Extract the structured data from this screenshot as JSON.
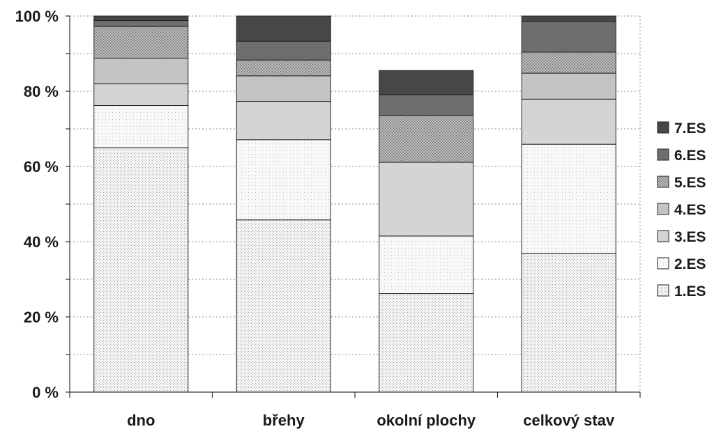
{
  "chart_data": {
    "type": "bar",
    "stacked": true,
    "title": "",
    "xlabel": "",
    "ylabel": "",
    "ylim": [
      0,
      100
    ],
    "y_ticks": [
      {
        "value": 0,
        "label": "0 %"
      },
      {
        "value": 20,
        "label": "20 %"
      },
      {
        "value": 40,
        "label": "40 %"
      },
      {
        "value": 60,
        "label": "60 %"
      },
      {
        "value": 80,
        "label": "80 %"
      },
      {
        "value": 100,
        "label": "100 %"
      }
    ],
    "grid": true,
    "legend_position": "right",
    "categories": [
      "dno",
      "břehy",
      "okolní plochy",
      "celkový stav"
    ],
    "series": [
      {
        "name": "1.ES",
        "values": [
          65.0,
          45.8,
          26.2,
          36.9
        ]
      },
      {
        "name": "2.ES",
        "values": [
          11.2,
          21.3,
          15.3,
          29.0
        ]
      },
      {
        "name": "3.ES",
        "values": [
          5.8,
          10.2,
          19.6,
          12.0
        ]
      },
      {
        "name": "4.ES",
        "values": [
          6.8,
          6.8,
          0.0,
          6.9
        ]
      },
      {
        "name": "5.ES",
        "values": [
          8.4,
          4.2,
          12.5,
          5.6
        ]
      },
      {
        "name": "6.ES",
        "values": [
          1.6,
          5.0,
          5.5,
          8.2
        ]
      },
      {
        "name": "7.ES",
        "values": [
          1.2,
          6.7,
          6.4,
          1.4
        ]
      }
    ],
    "series_colors": [
      "#f3f3f3",
      "#f7f7f7",
      "#d4d4d4",
      "#c4c4c4",
      "#9a9a9a",
      "#6e6e6e",
      "#474747"
    ]
  }
}
